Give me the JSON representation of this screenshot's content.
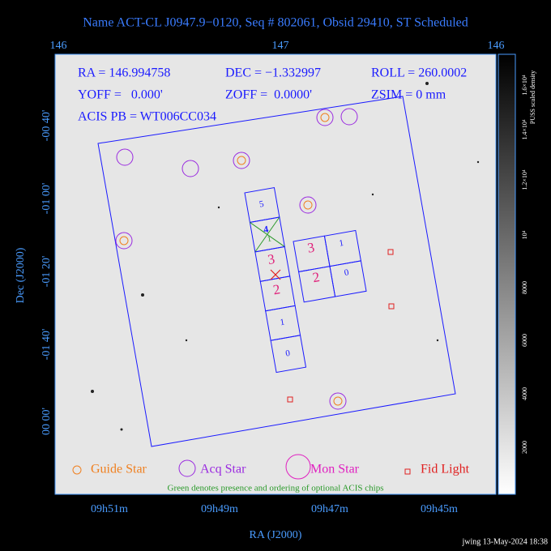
{
  "title": "Name ACT-CL J0947.9−0120, Seq # 802061, Obsid 29410, ST Scheduled",
  "top_axis_ticks": [
    "146",
    "147",
    "146"
  ],
  "info": [
    "RA = 146.994758",
    "DEC = −1.332997",
    "ROLL = 260.0002",
    "YOFF =   0.000'",
    "ZOFF =  0.0000'",
    "ZSIM = 0 mm",
    "ACIS PB = WT006CC034"
  ],
  "y_axis": {
    "label": "Dec (J2000)",
    "ticks": [
      "-00 40'",
      "-01 00'",
      "-01 20'",
      "-01 40'",
      "00 00'"
    ]
  },
  "x_axis": {
    "label": "RA (J2000)",
    "ticks": [
      "09h51m",
      "09h49m",
      "09h47m",
      "09h45m"
    ]
  },
  "i_chips": [
    "5",
    "4",
    "3",
    "2",
    "1",
    "0"
  ],
  "optional_chip": "1",
  "s_chips": [
    "3",
    "1",
    "2",
    "0"
  ],
  "legend": [
    "Guide Star",
    "Acq Star",
    "Mon Star",
    "Fid Light"
  ],
  "note": "Green denotes presence and ordering of optional ACIS chips",
  "colorbar": {
    "label": "PUSS scaled density",
    "ticks": [
      "1.6×10⁴",
      "1.4×10⁴",
      "1.2×10⁴",
      "10⁴",
      "8000",
      "6000",
      "4000",
      "2000"
    ]
  },
  "footer": "jwing 13-May-2024 18:38"
}
